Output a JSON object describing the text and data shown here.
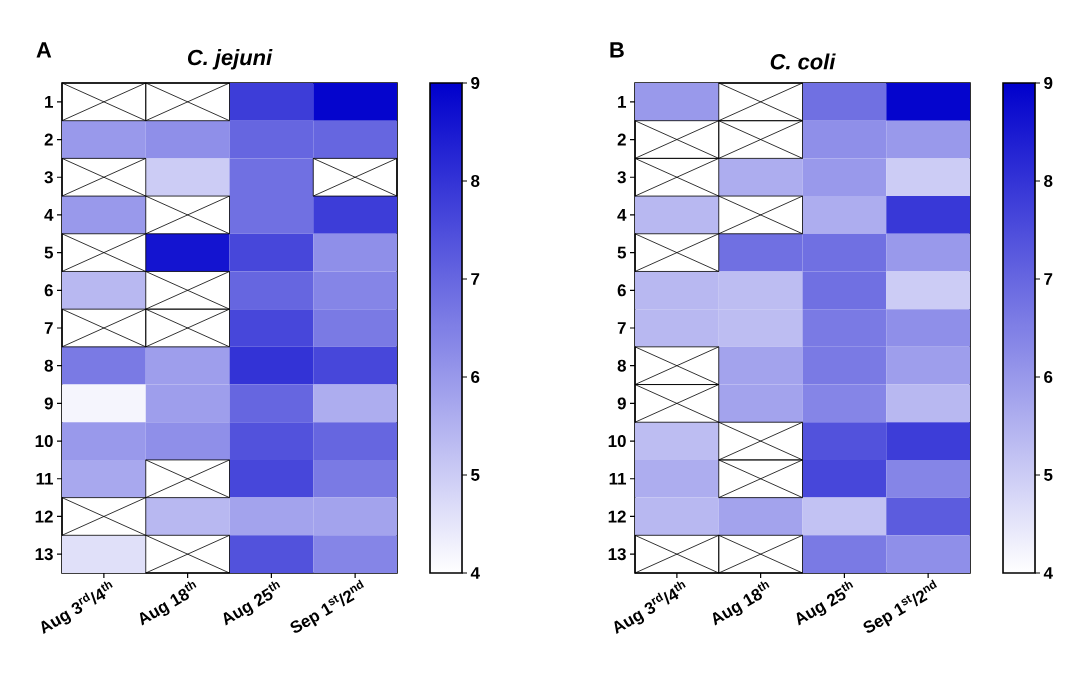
{
  "chart_data": [
    {
      "type": "heatmap",
      "title": "C. jejuni",
      "annotations": [
        "A"
      ],
      "categories": [
        "Aug 3$^{rd}$/4$^{th}$",
        "Aug 18$^{th}$",
        "Aug 25$^{th}$",
        "Sep 1$^{st}$/2$^{nd}$"
      ],
      "y_categories": [
        "1",
        "2",
        "3",
        "4",
        "5",
        "6",
        "7",
        "8",
        "9",
        "10",
        "11",
        "12",
        "13"
      ],
      "cells": [
        [
          null,
          null,
          7.8,
          8.9
        ],
        [
          6.0,
          6.2,
          7.0,
          7.0
        ],
        [
          null,
          5.0,
          6.8,
          null
        ],
        [
          6.0,
          null,
          6.8,
          7.8
        ],
        [
          null,
          8.6,
          7.6,
          6.2
        ],
        [
          5.4,
          null,
          7.0,
          6.4
        ],
        [
          null,
          null,
          7.6,
          6.6
        ],
        [
          6.6,
          5.9,
          8.0,
          7.6
        ],
        [
          4.2,
          5.9,
          7.0,
          5.6
        ],
        [
          6.0,
          6.2,
          7.4,
          7.0
        ],
        [
          5.7,
          null,
          7.6,
          6.6
        ],
        [
          null,
          5.4,
          5.8,
          5.8
        ],
        [
          4.6,
          null,
          7.4,
          6.4
        ]
      ],
      "clim": [
        4,
        9
      ],
      "cticks": [
        4,
        5,
        6,
        7,
        8,
        9
      ]
    },
    {
      "type": "heatmap",
      "title": "C. coli",
      "annotations": [
        "B"
      ],
      "categories": [
        "Aug 3$^{rd}$/4$^{th}$",
        "Aug 18$^{th}$",
        "Aug 25$^{th}$",
        "Sep 1$^{st}$/2$^{nd}$"
      ],
      "y_categories": [
        "1",
        "2",
        "3",
        "4",
        "5",
        "6",
        "7",
        "8",
        "9",
        "10",
        "11",
        "12",
        "13"
      ],
      "cells": [
        [
          6.0,
          null,
          6.8,
          8.9
        ],
        [
          null,
          null,
          6.2,
          6.0
        ],
        [
          null,
          5.6,
          6.0,
          5.0
        ],
        [
          5.4,
          null,
          5.6,
          7.9
        ],
        [
          null,
          6.8,
          6.8,
          6.0
        ],
        [
          5.4,
          5.3,
          6.8,
          5.0
        ],
        [
          5.4,
          5.3,
          6.6,
          6.2
        ],
        [
          null,
          5.8,
          6.6,
          5.9
        ],
        [
          null,
          5.8,
          6.4,
          5.4
        ],
        [
          5.3,
          null,
          7.4,
          7.8
        ],
        [
          5.6,
          null,
          7.6,
          6.4
        ],
        [
          5.4,
          5.8,
          5.2,
          7.2
        ],
        [
          null,
          null,
          6.6,
          6.2
        ]
      ],
      "clim": [
        4,
        9
      ],
      "cticks": [
        4,
        5,
        6,
        7,
        8,
        9
      ]
    }
  ]
}
